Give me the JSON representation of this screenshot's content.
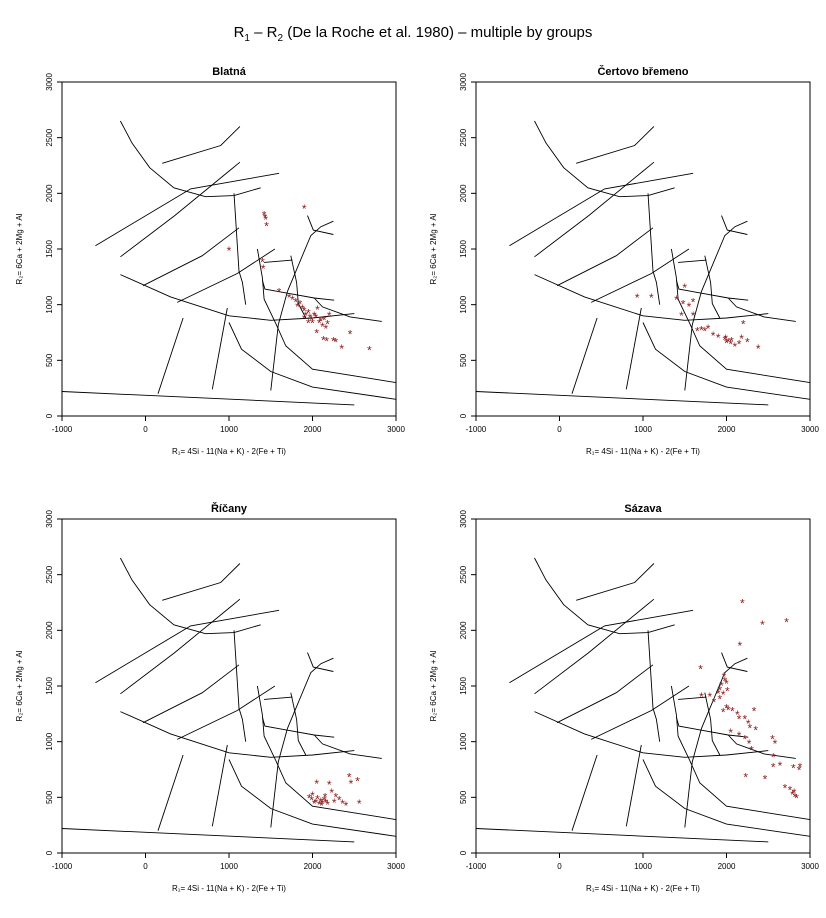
{
  "title": {
    "prefix": "R",
    "sub1": "1",
    "mid": " – R",
    "sub2": "2",
    "suffix": " (De la Roche et al. 1980) – multiple by groups"
  },
  "axis_labels": {
    "xlabel": "R₁= 4Si - 11(Na + K) - 2(Fe + Ti)",
    "ylabel": "R₂= 6Ca + 2Mg + Al"
  },
  "chart_data": [
    {
      "type": "scatter",
      "title": "Blatná",
      "xlim": [
        -1000,
        3000
      ],
      "ylim": [
        0,
        3000
      ],
      "xticks": [
        -1000,
        0,
        1000,
        2000,
        3000
      ],
      "yticks": [
        0,
        500,
        1000,
        1500,
        2000,
        2500,
        3000
      ],
      "marker": "*",
      "color": "#8b1a1a",
      "points": [
        [
          1420,
          1800
        ],
        [
          1440,
          1760
        ],
        [
          1450,
          1700
        ],
        [
          1430,
          1780
        ],
        [
          1900,
          1860
        ],
        [
          1000,
          1480
        ],
        [
          1400,
          1380
        ],
        [
          1410,
          1320
        ],
        [
          1600,
          1110
        ],
        [
          1720,
          1060
        ],
        [
          1760,
          1040
        ],
        [
          1800,
          1020
        ],
        [
          1820,
          980
        ],
        [
          1850,
          1000
        ],
        [
          1880,
          960
        ],
        [
          1900,
          940
        ],
        [
          1920,
          900
        ],
        [
          1950,
          920
        ],
        [
          1970,
          880
        ],
        [
          1990,
          860
        ],
        [
          2000,
          830
        ],
        [
          2020,
          900
        ],
        [
          2040,
          880
        ],
        [
          2060,
          950
        ],
        [
          2080,
          830
        ],
        [
          2100,
          850
        ],
        [
          2120,
          800
        ],
        [
          2140,
          860
        ],
        [
          2160,
          780
        ],
        [
          2180,
          820
        ],
        [
          2200,
          900
        ],
        [
          2050,
          740
        ],
        [
          2130,
          680
        ],
        [
          2170,
          670
        ],
        [
          2250,
          670
        ],
        [
          2280,
          660
        ],
        [
          2350,
          600
        ],
        [
          2450,
          730
        ],
        [
          2680,
          590
        ],
        [
          1900,
          870
        ],
        [
          1950,
          830
        ]
      ]
    },
    {
      "type": "scatter",
      "title": "Čertovo břemeno",
      "xlim": [
        -1000,
        3000
      ],
      "ylim": [
        0,
        3000
      ],
      "xticks": [
        -1000,
        0,
        1000,
        2000,
        3000
      ],
      "yticks": [
        0,
        500,
        1000,
        1500,
        2000,
        2500,
        3000
      ],
      "marker": "*",
      "color": "#8b1a1a",
      "points": [
        [
          930,
          1060
        ],
        [
          1100,
          1060
        ],
        [
          1400,
          1040
        ],
        [
          1500,
          1150
        ],
        [
          1480,
          1000
        ],
        [
          1550,
          980
        ],
        [
          1600,
          1020
        ],
        [
          1460,
          900
        ],
        [
          1600,
          900
        ],
        [
          1700,
          770
        ],
        [
          1740,
          760
        ],
        [
          1780,
          780
        ],
        [
          1650,
          760
        ],
        [
          1840,
          720
        ],
        [
          1900,
          700
        ],
        [
          1980,
          680
        ],
        [
          2000,
          650
        ],
        [
          2020,
          660
        ],
        [
          2050,
          640
        ],
        [
          2100,
          620
        ],
        [
          2150,
          640
        ],
        [
          2200,
          820
        ],
        [
          2180,
          690
        ],
        [
          2250,
          660
        ],
        [
          2380,
          600
        ],
        [
          1990,
          690
        ],
        [
          2060,
          670
        ]
      ]
    },
    {
      "type": "scatter",
      "title": "Říčany",
      "xlim": [
        -1000,
        3000
      ],
      "ylim": [
        0,
        3000
      ],
      "xticks": [
        -1000,
        0,
        1000,
        2000,
        3000
      ],
      "yticks": [
        0,
        500,
        1000,
        1500,
        2000,
        2500,
        3000
      ],
      "marker": "*",
      "color": "#8b1a1a",
      "points": [
        [
          1960,
          490
        ],
        [
          1990,
          470
        ],
        [
          2000,
          510
        ],
        [
          2040,
          450
        ],
        [
          2060,
          480
        ],
        [
          2080,
          430
        ],
        [
          2100,
          460
        ],
        [
          2120,
          440
        ],
        [
          2140,
          470
        ],
        [
          2160,
          450
        ],
        [
          2180,
          430
        ],
        [
          2050,
          620
        ],
        [
          2200,
          610
        ],
        [
          2230,
          540
        ],
        [
          2280,
          500
        ],
        [
          2320,
          470
        ],
        [
          2360,
          440
        ],
        [
          2400,
          420
        ],
        [
          2440,
          680
        ],
        [
          2460,
          620
        ],
        [
          2540,
          640
        ],
        [
          2560,
          440
        ],
        [
          2020,
          440
        ],
        [
          2110,
          420
        ],
        [
          2150,
          500
        ],
        [
          2260,
          450
        ]
      ]
    },
    {
      "type": "scatter",
      "title": "Sázava",
      "xlim": [
        -1000,
        3000
      ],
      "ylim": [
        0,
        3000
      ],
      "xticks": [
        -1000,
        0,
        1000,
        2000,
        3000
      ],
      "yticks": [
        0,
        500,
        1000,
        1500,
        2000,
        2500,
        3000
      ],
      "marker": "*",
      "color": "#8b1a1a",
      "points": [
        [
          2190,
          2240
        ],
        [
          2430,
          2050
        ],
        [
          2720,
          2070
        ],
        [
          2160,
          1860
        ],
        [
          1690,
          1650
        ],
        [
          1970,
          1580
        ],
        [
          1980,
          1540
        ],
        [
          2000,
          1520
        ],
        [
          1940,
          1500
        ],
        [
          1920,
          1460
        ],
        [
          2010,
          1450
        ],
        [
          1900,
          1430
        ],
        [
          1960,
          1420
        ],
        [
          1700,
          1400
        ],
        [
          1800,
          1400
        ],
        [
          1920,
          1380
        ],
        [
          1850,
          1350
        ],
        [
          2000,
          1300
        ],
        [
          2020,
          1280
        ],
        [
          1960,
          1260
        ],
        [
          2070,
          1270
        ],
        [
          2130,
          1240
        ],
        [
          2150,
          1200
        ],
        [
          2220,
          1200
        ],
        [
          2330,
          1270
        ],
        [
          2260,
          1160
        ],
        [
          2280,
          1120
        ],
        [
          2350,
          1100
        ],
        [
          2220,
          1020
        ],
        [
          2270,
          980
        ],
        [
          2300,
          920
        ],
        [
          2150,
          1050
        ],
        [
          2050,
          1080
        ],
        [
          2550,
          1020
        ],
        [
          2580,
          980
        ],
        [
          2560,
          860
        ],
        [
          2640,
          780
        ],
        [
          2560,
          770
        ],
        [
          2700,
          580
        ],
        [
          2460,
          660
        ],
        [
          2230,
          680
        ],
        [
          2800,
          760
        ],
        [
          2870,
          740
        ],
        [
          2880,
          770
        ],
        [
          2760,
          560
        ],
        [
          2790,
          520
        ],
        [
          2820,
          500
        ],
        [
          2840,
          490
        ],
        [
          2810,
          540
        ]
      ]
    }
  ]
}
